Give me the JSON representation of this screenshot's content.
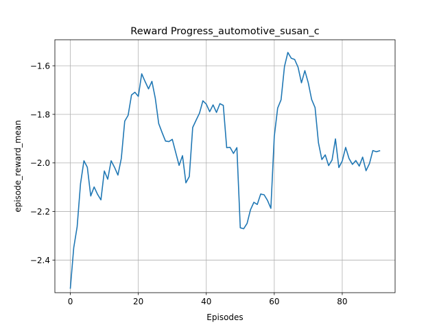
{
  "chart_data": {
    "type": "line",
    "title": "Reward Progress_automotive_susan_c",
    "xlabel": "Episodes",
    "ylabel": "episode_reward_mean",
    "xlim": [
      -4.55,
      95.55
    ],
    "ylim": [
      -2.5342,
      -1.4928
    ],
    "xticks": [
      0,
      20,
      40,
      60,
      80
    ],
    "xtick_labels": [
      "0",
      "20",
      "40",
      "60",
      "80"
    ],
    "yticks": [
      -2.4,
      -2.2,
      -2.0,
      -1.8,
      -1.6
    ],
    "ytick_labels": [
      "−2.4",
      "−2.2",
      "−2.0",
      "−1.8",
      "−1.6"
    ],
    "grid": true,
    "legend": "none",
    "series": [
      {
        "color": "#1f77b4",
        "x": [
          0,
          1,
          2,
          3,
          4,
          5,
          6,
          7,
          8,
          9,
          10,
          11,
          12,
          13,
          14,
          15,
          16,
          17,
          18,
          19,
          20,
          21,
          22,
          23,
          24,
          25,
          26,
          27,
          28,
          29,
          30,
          31,
          32,
          33,
          34,
          35,
          36,
          37,
          38,
          39,
          40,
          41,
          42,
          43,
          44,
          45,
          46,
          47,
          48,
          49,
          50,
          51,
          52,
          53,
          54,
          55,
          56,
          57,
          58,
          59,
          60,
          61,
          62,
          63,
          64,
          65,
          66,
          67,
          68,
          69,
          70,
          71,
          72,
          73,
          74,
          75,
          76,
          77,
          78,
          79,
          80,
          81,
          82,
          83,
          84,
          85,
          86,
          87,
          88,
          89,
          90,
          91
        ],
        "y": [
          -2.516,
          -2.349,
          -2.263,
          -2.085,
          -1.991,
          -2.018,
          -2.136,
          -2.099,
          -2.129,
          -2.152,
          -2.033,
          -2.067,
          -1.991,
          -2.018,
          -2.05,
          -1.981,
          -1.828,
          -1.804,
          -1.72,
          -1.709,
          -1.726,
          -1.633,
          -1.665,
          -1.695,
          -1.664,
          -1.734,
          -1.838,
          -1.875,
          -1.91,
          -1.912,
          -1.903,
          -1.957,
          -2.01,
          -1.97,
          -2.082,
          -2.056,
          -1.854,
          -1.824,
          -1.795,
          -1.744,
          -1.758,
          -1.789,
          -1.761,
          -1.792,
          -1.756,
          -1.763,
          -1.937,
          -1.936,
          -1.961,
          -1.937,
          -2.267,
          -2.271,
          -2.249,
          -2.193,
          -2.162,
          -2.171,
          -2.128,
          -2.131,
          -2.154,
          -2.187,
          -1.891,
          -1.774,
          -1.74,
          -1.603,
          -1.545,
          -1.569,
          -1.574,
          -1.606,
          -1.67,
          -1.62,
          -1.67,
          -1.739,
          -1.772,
          -1.917,
          -1.986,
          -1.967,
          -2.011,
          -1.988,
          -1.901,
          -2.019,
          -1.992,
          -1.936,
          -1.982,
          -2.006,
          -1.99,
          -2.013,
          -1.976,
          -2.032,
          -2.003,
          -1.949,
          -1.954,
          -1.95
        ]
      }
    ]
  }
}
